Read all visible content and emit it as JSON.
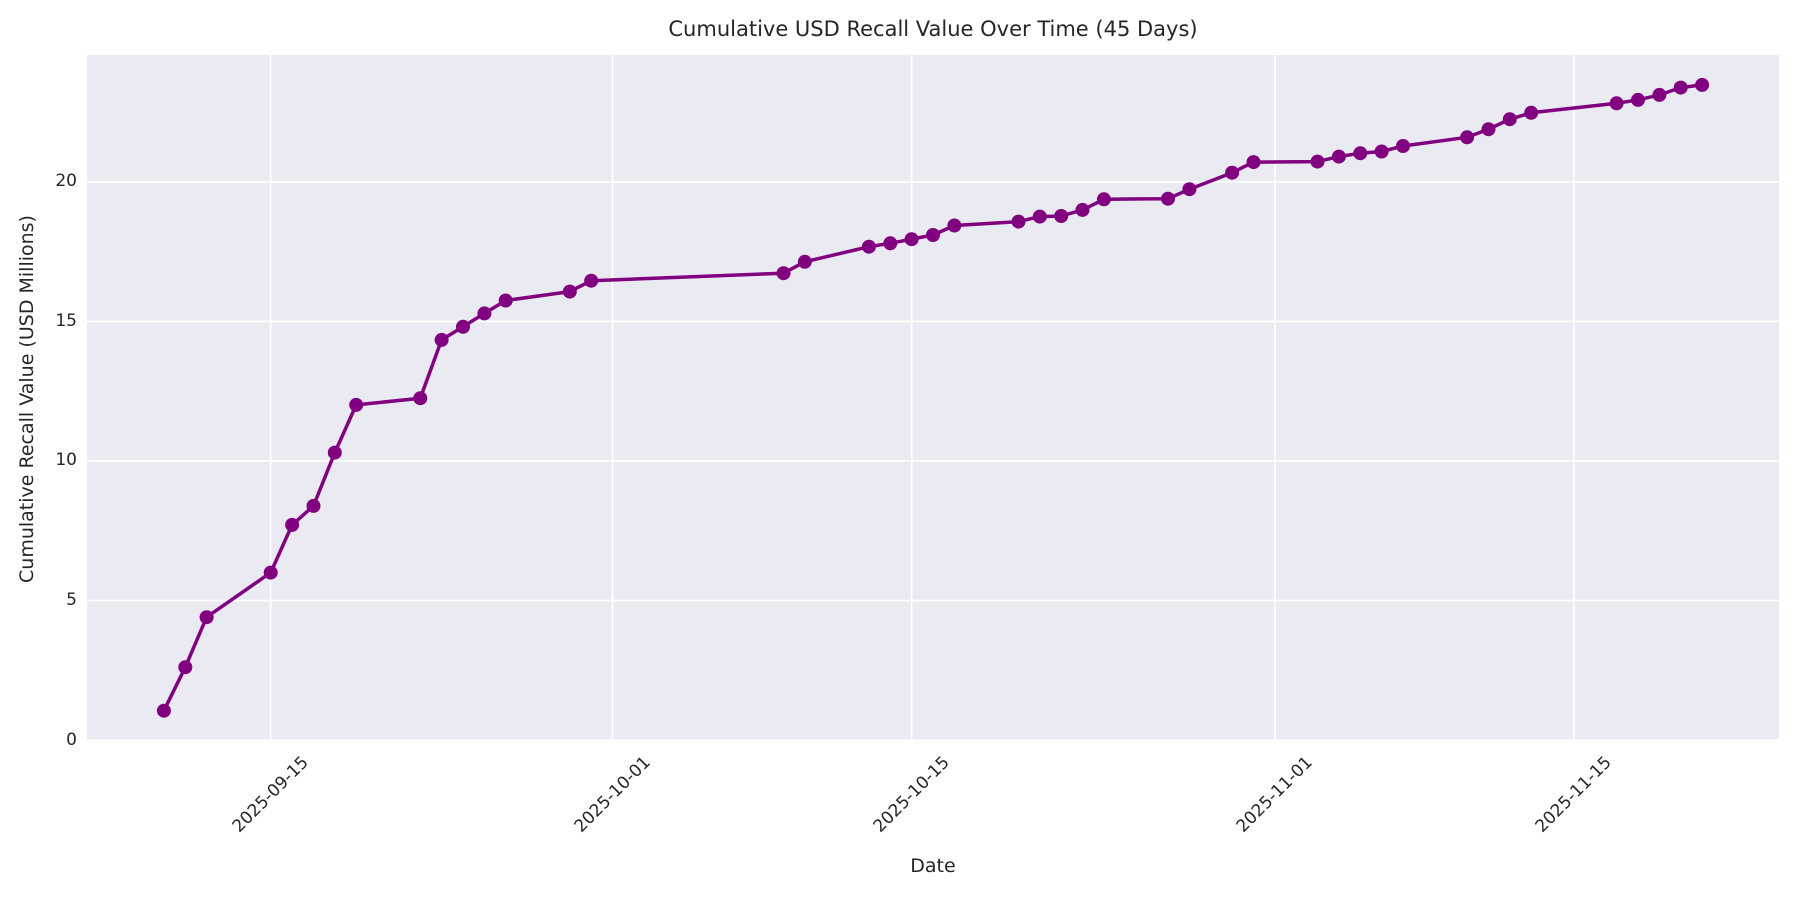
{
  "figure": {
    "background": "#ffffff"
  },
  "chart_data": {
    "type": "line",
    "title": "Cumulative USD Recall Value Over Time (45 Days)",
    "xlabel": "Date",
    "ylabel": "Cumulative Recall Value (USD Millions)",
    "legend": "none",
    "grid": true,
    "series_name": "cumulative-usd-recall-value",
    "x": [
      "2025-09-10",
      "2025-09-11",
      "2025-09-12",
      "2025-09-15",
      "2025-09-16",
      "2025-09-17",
      "2025-09-18",
      "2025-09-19",
      "2025-09-22",
      "2025-09-23",
      "2025-09-24",
      "2025-09-25",
      "2025-09-26",
      "2025-09-29",
      "2025-09-30",
      "2025-10-09",
      "2025-10-10",
      "2025-10-13",
      "2025-10-14",
      "2025-10-15",
      "2025-10-16",
      "2025-10-17",
      "2025-10-20",
      "2025-10-21",
      "2025-10-22",
      "2025-10-23",
      "2025-10-24",
      "2025-10-27",
      "2025-10-28",
      "2025-10-30",
      "2025-10-31",
      "2025-11-03",
      "2025-11-04",
      "2025-11-05",
      "2025-11-06",
      "2025-11-07",
      "2025-11-10",
      "2025-11-11",
      "2025-11-12",
      "2025-11-13",
      "2025-11-17",
      "2025-11-18",
      "2025-11-19",
      "2025-11-20",
      "2025-11-21"
    ],
    "values": [
      1.05,
      2.61,
      4.4,
      6.0,
      7.71,
      8.39,
      10.3,
      12.01,
      12.25,
      14.34,
      14.81,
      15.29,
      15.75,
      16.07,
      16.46,
      16.73,
      17.14,
      17.68,
      17.8,
      17.95,
      18.1,
      18.44,
      18.58,
      18.76,
      18.78,
      19.0,
      19.38,
      19.4,
      19.74,
      20.33,
      20.71,
      20.73,
      20.91,
      21.03,
      21.09,
      21.29,
      21.6,
      21.89,
      22.25,
      22.48,
      22.82,
      22.94,
      23.12,
      23.38,
      23.48
    ],
    "y_ticks": [
      0,
      5,
      10,
      15,
      20
    ],
    "x_tick_dates": [
      "2025-09-15",
      "2025-10-01",
      "2025-10-15",
      "2025-11-01",
      "2025-11-15"
    ],
    "ylim": [
      0,
      24.55
    ],
    "xlim_margin_days": 3.6,
    "x_tick_rotation_deg": 45,
    "marker": "circle",
    "colors": {
      "line": "#800080",
      "marker": "#800080",
      "plot_bg": "#EAEAF2",
      "grid": "#FFFFFF",
      "figure_bg": "#FFFFFF",
      "text": "#262626"
    }
  }
}
